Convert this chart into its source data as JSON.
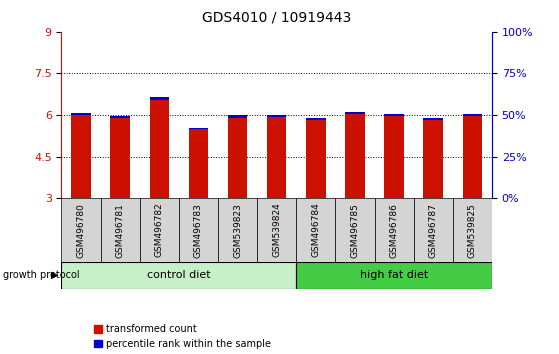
{
  "title": "GDS4010 / 10919443",
  "samples": [
    "GSM496780",
    "GSM496781",
    "GSM496782",
    "GSM496783",
    "GSM539823",
    "GSM539824",
    "GSM496784",
    "GSM496785",
    "GSM496786",
    "GSM496787",
    "GSM539825"
  ],
  "red_values": [
    6.08,
    5.95,
    6.65,
    5.55,
    6.0,
    6.0,
    5.9,
    6.1,
    6.05,
    5.9,
    6.05
  ],
  "blue_values": [
    6.0,
    5.88,
    6.55,
    5.48,
    5.88,
    5.93,
    5.82,
    6.02,
    5.98,
    5.82,
    5.98
  ],
  "y_min": 3,
  "y_max": 9,
  "y_ticks_left": [
    3,
    4.5,
    6,
    7.5,
    9
  ],
  "right_tick_labels": [
    "0%",
    "25%",
    "50%",
    "75%",
    "100%"
  ],
  "dotted_lines": [
    4.5,
    6.0,
    7.5
  ],
  "n_control": 6,
  "n_highfat": 5,
  "control_label": "control diet",
  "highfat_label": "high fat diet",
  "growth_protocol_label": "growth protocol",
  "legend_red": "transformed count",
  "legend_blue": "percentile rank within the sample",
  "bar_color": "#cc1100",
  "blue_color": "#0000cc",
  "control_bg": "#c8f0c8",
  "highfat_bg": "#44cc44",
  "sample_bg": "#d4d4d4",
  "bar_width": 0.5,
  "title_fontsize": 10,
  "tick_fontsize": 8,
  "label_fontsize": 8,
  "sample_fontsize": 6.5
}
